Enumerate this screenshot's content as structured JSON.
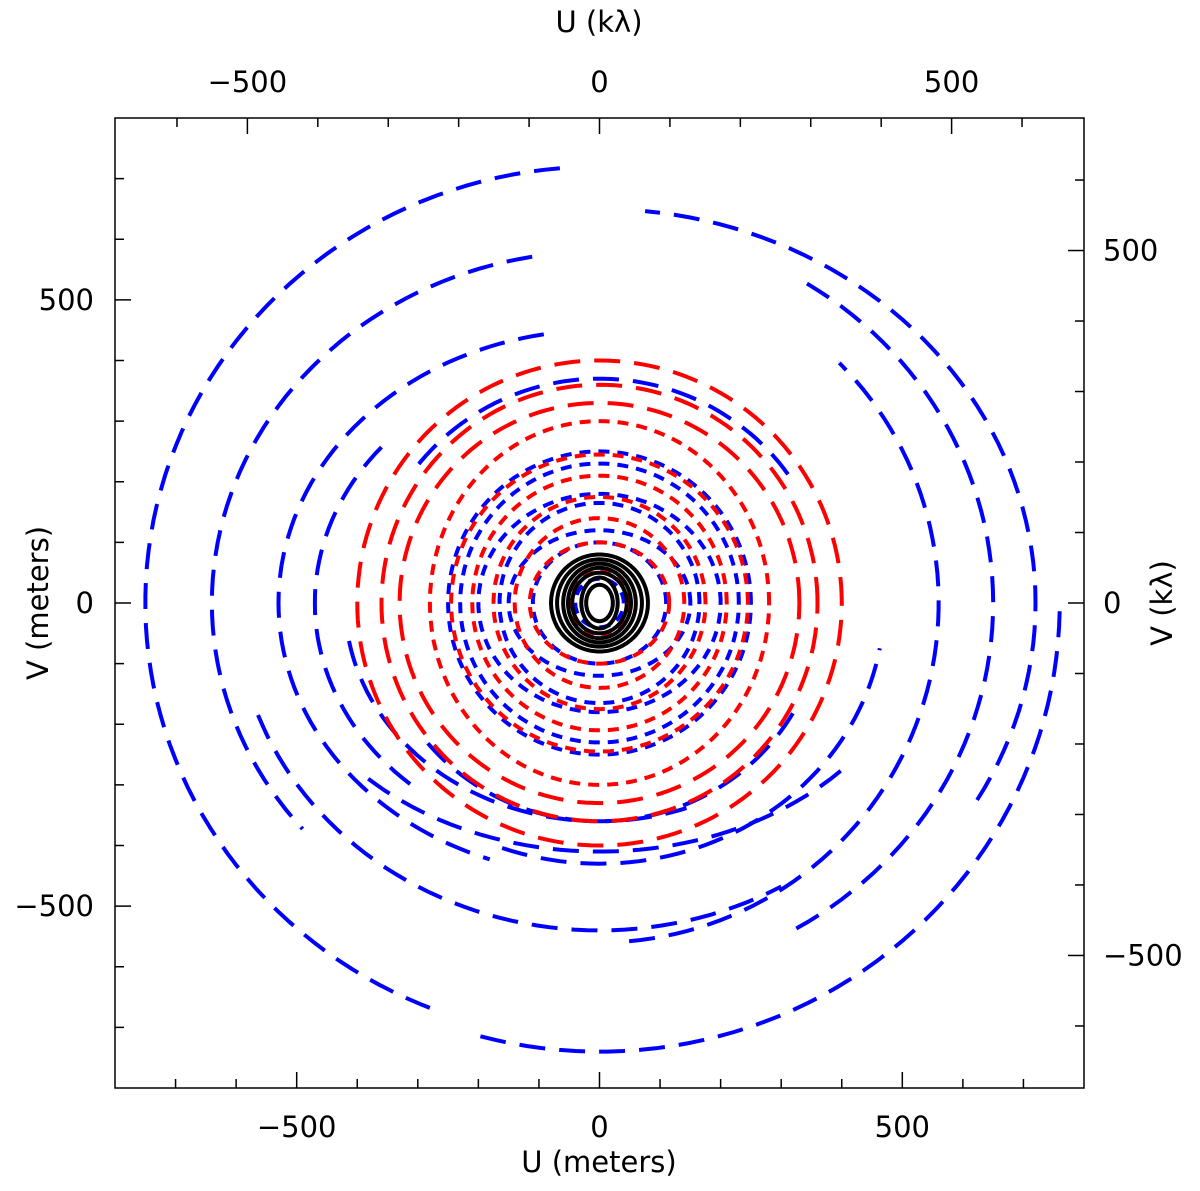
{
  "chart_data": {
    "type": "scatter",
    "xlabel": "U (meters)",
    "ylabel": "V (meters)",
    "x2label": "U (kλ)",
    "y2label": "V (kλ)",
    "xlim": [
      -800,
      800
    ],
    "ylim": [
      -800,
      800
    ],
    "x_ticks": [
      -500,
      0,
      500
    ],
    "x_tick_labels": [
      "−500",
      "0",
      "500"
    ],
    "y_ticks": [
      -500,
      0,
      500
    ],
    "y_tick_labels": [
      "−500",
      "0",
      "500"
    ],
    "x2_ticks_klambda": [
      -500,
      0,
      500
    ],
    "x2_tick_labels": [
      "−500",
      "0",
      "500"
    ],
    "y2_ticks_klambda": [
      -500,
      0,
      500
    ],
    "y2_tick_labels": [
      "−500",
      "0",
      "500"
    ],
    "klambda_per_meter": 0.86,
    "grid": false,
    "series": [
      {
        "color": "#0000ff",
        "style": "dashed",
        "tracks": [
          {
            "a": 750,
            "b": 720,
            "start": 95,
            "end": 250
          },
          {
            "a": 760,
            "b": 740,
            "start": 255,
            "end": 360
          },
          {
            "a": 640,
            "b": 580,
            "start": 100,
            "end": 220
          },
          {
            "a": 600,
            "b": 540,
            "start": 200,
            "end": 300
          },
          {
            "a": 560,
            "b": 560,
            "start": 275,
            "end": 405
          },
          {
            "a": 720,
            "b": 650,
            "start": -30,
            "end": 85
          },
          {
            "a": 650,
            "b": 620,
            "start": -60,
            "end": 60
          },
          {
            "a": 530,
            "b": 450,
            "start": 100,
            "end": 250
          },
          {
            "a": 540,
            "b": 410,
            "start": 225,
            "end": 320
          },
          {
            "a": 470,
            "b": 430,
            "start": 250,
            "end": 350
          },
          {
            "a": 470,
            "b": 400,
            "start": 140,
            "end": 230
          },
          {
            "a": 420,
            "b": 360,
            "start": 190,
            "end": 290
          },
          {
            "a": 380,
            "b": 370,
            "start": 35,
            "end": 145
          },
          {
            "a": 370,
            "b": 360,
            "start": 220,
            "end": 330
          },
          {
            "a": 250,
            "b": 250,
            "start": 0,
            "end": 360
          },
          {
            "a": 230,
            "b": 230,
            "start": 0,
            "end": 360
          },
          {
            "a": 200,
            "b": 180,
            "start": 0,
            "end": 360
          },
          {
            "a": 165,
            "b": 165,
            "start": 0,
            "end": 360
          },
          {
            "a": 150,
            "b": 120,
            "start": 0,
            "end": 360
          },
          {
            "a": 110,
            "b": 100,
            "start": 0,
            "end": 360
          },
          {
            "a": 40,
            "b": 40,
            "start": 0,
            "end": 360
          }
        ]
      },
      {
        "color": "#ff0000",
        "style": "dashed",
        "tracks": [
          {
            "a": 400,
            "b": 400,
            "start": 0,
            "end": 360
          },
          {
            "a": 360,
            "b": 360,
            "start": 0,
            "end": 360
          },
          {
            "a": 330,
            "b": 330,
            "start": 0,
            "end": 360
          },
          {
            "a": 280,
            "b": 300,
            "start": 0,
            "end": 360
          },
          {
            "a": 245,
            "b": 245,
            "start": 0,
            "end": 360
          },
          {
            "a": 210,
            "b": 210,
            "start": 0,
            "end": 360
          },
          {
            "a": 175,
            "b": 175,
            "start": 0,
            "end": 360
          },
          {
            "a": 140,
            "b": 140,
            "start": 0,
            "end": 360
          },
          {
            "a": 115,
            "b": 100,
            "start": 0,
            "end": 360
          },
          {
            "a": 50,
            "b": 55,
            "start": 0,
            "end": 360
          }
        ]
      },
      {
        "color": "#000000",
        "style": "solid",
        "tracks": [
          {
            "a": 80,
            "b": 80,
            "start": 0,
            "end": 360
          },
          {
            "a": 70,
            "b": 72,
            "start": 0,
            "end": 360
          },
          {
            "a": 60,
            "b": 65,
            "start": 0,
            "end": 360
          },
          {
            "a": 52,
            "b": 58,
            "start": 0,
            "end": 360
          },
          {
            "a": 45,
            "b": 50,
            "start": 0,
            "end": 360
          },
          {
            "a": 30,
            "b": 42,
            "start": 0,
            "end": 360
          },
          {
            "a": 22,
            "b": 30,
            "start": 0,
            "end": 360
          }
        ]
      }
    ]
  }
}
